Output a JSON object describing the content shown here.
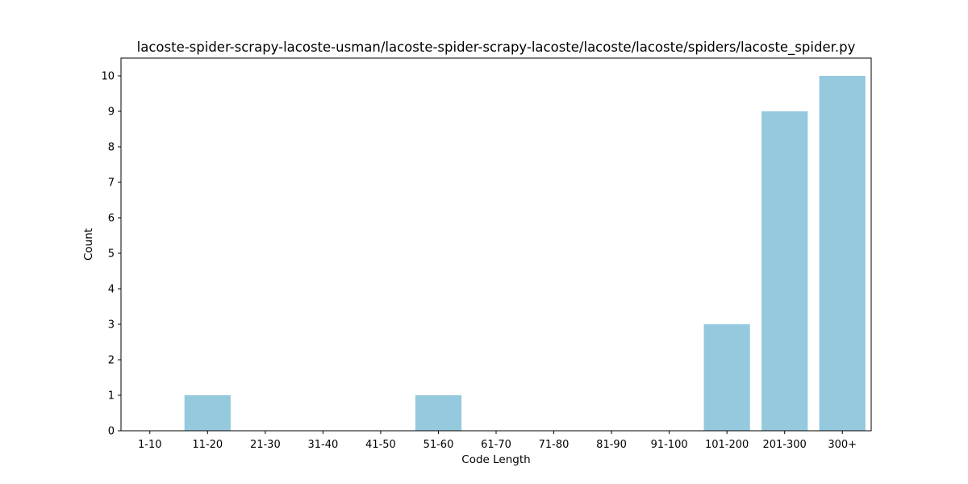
{
  "chart_data": {
    "type": "bar",
    "title": "lacoste-spider-scrapy-lacoste-usman/lacoste-spider-scrapy-lacoste/lacoste/lacoste/spiders/lacoste_spider.py",
    "xlabel": "Code Length",
    "ylabel": "Count",
    "categories": [
      "1-10",
      "11-20",
      "21-30",
      "31-40",
      "41-50",
      "51-60",
      "61-70",
      "71-80",
      "81-90",
      "91-100",
      "101-200",
      "201-300",
      "300+"
    ],
    "values": [
      0,
      1,
      0,
      0,
      0,
      1,
      0,
      0,
      0,
      0,
      3,
      9,
      10
    ],
    "ylim": [
      0,
      10.5
    ],
    "yticks": [
      0,
      1,
      2,
      3,
      4,
      5,
      6,
      7,
      8,
      9,
      10
    ],
    "grid": false,
    "legend": "none",
    "bar_color": "#95c9de"
  }
}
